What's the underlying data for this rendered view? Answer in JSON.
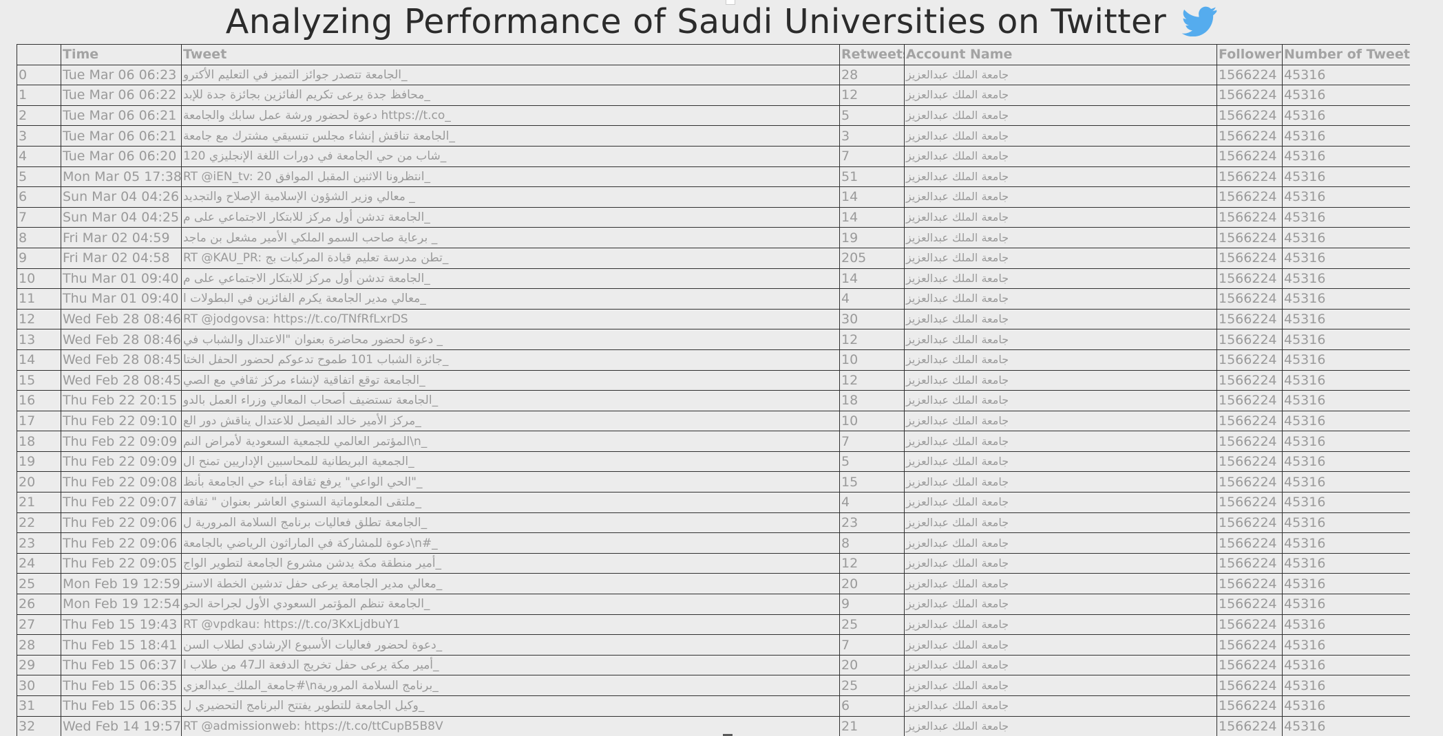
{
  "header": {
    "title": "Analyzing Performance of Saudi Universities on Twitter",
    "icon": "twitter-bird-icon",
    "icon_color": "#55acee"
  },
  "table": {
    "columns": [
      "",
      "Time",
      "Tweet",
      "Retweets",
      "Account Name",
      "Followers",
      "Number of Tweets"
    ],
    "rows": [
      {
        "idx": "0",
        "time": "Tue Mar 06 06:23",
        "tweet": "الجامعة تتصدر جوائز التميز في التعليم الأكترو_",
        "retweets": "28",
        "account": "جامعة الملك عبدالعزيز",
        "followers": "1566224",
        "tweets": "45316"
      },
      {
        "idx": "1",
        "time": "Tue Mar 06 06:22",
        "tweet": "محافظ جدة يرعى تكريم الفائزين بجائزة جدة للإبد_",
        "retweets": "12",
        "account": "جامعة الملك عبدالعزيز",
        "followers": "1566224",
        "tweets": "45316"
      },
      {
        "idx": "2",
        "time": "Tue Mar 06 06:21",
        "tweet": "دعوة لحضور ورشة عمل سابك والجامعة https://t.co_",
        "retweets": "5",
        "account": "جامعة الملك عبدالعزيز",
        "followers": "1566224",
        "tweets": "45316"
      },
      {
        "idx": "3",
        "time": "Tue Mar 06 06:21",
        "tweet": "الجامعة تناقش إنشاء مجلس تنسيقي مشترك مع جامعة_",
        "retweets": "3",
        "account": "جامعة الملك عبدالعزيز",
        "followers": "1566224",
        "tweets": "45316"
      },
      {
        "idx": "4",
        "time": "Tue Mar 06 06:20",
        "tweet": "شاب من حي الجامعة في دورات اللغة الإنجليزي 120_",
        "retweets": "7",
        "account": "جامعة الملك عبدالعزيز",
        "followers": "1566224",
        "tweets": "45316"
      },
      {
        "idx": "5",
        "time": "Mon Mar 05 17:38",
        "tweet": "RT @iEN_tv: 20 انتظرونا الاثنين المقبل الموافق_",
        "retweets": "51",
        "account": "جامعة الملك عبدالعزيز",
        "followers": "1566224",
        "tweets": "45316"
      },
      {
        "idx": "6",
        "time": "Sun Mar 04 04:26",
        "tweet": "معالي وزير الشؤون الإسلامية الإصلاح والتجديد _",
        "retweets": "14",
        "account": "جامعة الملك عبدالعزيز",
        "followers": "1566224",
        "tweets": "45316"
      },
      {
        "idx": "7",
        "time": "Sun Mar 04 04:25",
        "tweet": "الجامعة تدشن أول مركز للابتكار الاجتماعي على م_",
        "retweets": "14",
        "account": "جامعة الملك عبدالعزيز",
        "followers": "1566224",
        "tweets": "45316"
      },
      {
        "idx": "8",
        "time": "Fri Mar 02 04:59",
        "tweet": "برعاية صاحب السمو الملكي الأمير مشعل بن ماجد _",
        "retweets": "19",
        "account": "جامعة الملك عبدالعزيز",
        "followers": "1566224",
        "tweets": "45316"
      },
      {
        "idx": "9",
        "time": "Fri Mar 02 04:58",
        "tweet": "RT @KAU_PR: تطن مدرسة تعليم قيادة المركبات بج_",
        "retweets": "205",
        "account": "جامعة الملك عبدالعزيز",
        "followers": "1566224",
        "tweets": "45316"
      },
      {
        "idx": "10",
        "time": "Thu Mar 01 09:40",
        "tweet": "الجامعة تدشن أول مركز للابتكار الاجتماعي على م_",
        "retweets": "14",
        "account": "جامعة الملك عبدالعزيز",
        "followers": "1566224",
        "tweets": "45316"
      },
      {
        "idx": "11",
        "time": "Thu Mar 01 09:40",
        "tweet": "معالي مدير الجامعة يكرم الفائزين في البطولات ا_",
        "retweets": "4",
        "account": "جامعة الملك عبدالعزيز",
        "followers": "1566224",
        "tweets": "45316"
      },
      {
        "idx": "12",
        "time": "Wed Feb 28 08:46",
        "tweet": "RT @jodgovsa: https://t.co/TNfRfLxrDS",
        "retweets": "30",
        "account": "جامعة الملك عبدالعزيز",
        "followers": "1566224",
        "tweets": "45316"
      },
      {
        "idx": "13",
        "time": "Wed Feb 28 08:46",
        "tweet": "دعوة لحضور محاضرة بعنوان \"الاعتدال والشباب في _",
        "retweets": "12",
        "account": "جامعة الملك عبدالعزيز",
        "followers": "1566224",
        "tweets": "45316"
      },
      {
        "idx": "14",
        "time": "Wed Feb 28 08:45",
        "tweet": "جائزة الشباب 101 طموح تدعوكم لحضور الحفل الختا_",
        "retweets": "10",
        "account": "جامعة الملك عبدالعزيز",
        "followers": "1566224",
        "tweets": "45316"
      },
      {
        "idx": "15",
        "time": "Wed Feb 28 08:45",
        "tweet": "الجامعة توقع اتفاقية لإنشاء مركز ثقافي مع الصي_",
        "retweets": "12",
        "account": "جامعة الملك عبدالعزيز",
        "followers": "1566224",
        "tweets": "45316"
      },
      {
        "idx": "16",
        "time": "Thu Feb 22 20:15",
        "tweet": "الجامعة تستضيف أصحاب المعالي وزراء العمل بالدو_",
        "retweets": "18",
        "account": "جامعة الملك عبدالعزيز",
        "followers": "1566224",
        "tweets": "45316"
      },
      {
        "idx": "17",
        "time": "Thu Feb 22 09:10",
        "tweet": "مركز الأمير خالد الفيصل للاعتدال يناقش دور الع_",
        "retweets": "10",
        "account": "جامعة الملك عبدالعزيز",
        "followers": "1566224",
        "tweets": "45316"
      },
      {
        "idx": "18",
        "time": "Thu Feb 22 09:09",
        "tweet": "المؤتمر العالمي للجمعية السعودية لأمراض النم\\n_",
        "retweets": "7",
        "account": "جامعة الملك عبدالعزيز",
        "followers": "1566224",
        "tweets": "45316"
      },
      {
        "idx": "19",
        "time": "Thu Feb 22 09:09",
        "tweet": "الجمعية البريطانية للمحاسبين الإداريين تمنح ال_",
        "retweets": "5",
        "account": "جامعة الملك عبدالعزيز",
        "followers": "1566224",
        "tweets": "45316"
      },
      {
        "idx": "20",
        "time": "Thu Feb 22 09:08",
        "tweet": "الحي الواعي\" يرفع ثقافة أبناء حي الجامعة بأنظ\"_",
        "retweets": "15",
        "account": "جامعة الملك عبدالعزيز",
        "followers": "1566224",
        "tweets": "45316"
      },
      {
        "idx": "21",
        "time": "Thu Feb 22 09:07",
        "tweet": "ملتقى المعلوماتية السنوي العاشر بعنوان \" ثقافة_",
        "retweets": "4",
        "account": "جامعة الملك عبدالعزيز",
        "followers": "1566224",
        "tweets": "45316"
      },
      {
        "idx": "22",
        "time": "Thu Feb 22 09:06",
        "tweet": "الجامعة تطلق فعاليات برنامج السلامة المرورية ل_",
        "retweets": "23",
        "account": "جامعة الملك عبدالعزيز",
        "followers": "1566224",
        "tweets": "45316"
      },
      {
        "idx": "23",
        "time": "Thu Feb 22 09:06",
        "tweet": "دعوة للمشاركة في الماراثون الرياضي بالجامعة\\n#_",
        "retweets": "8",
        "account": "جامعة الملك عبدالعزيز",
        "followers": "1566224",
        "tweets": "45316"
      },
      {
        "idx": "24",
        "time": "Thu Feb 22 09:05",
        "tweet": "أمير منطقة مكة يدشن مشروع الجامعة لتطوير الواج_",
        "retweets": "12",
        "account": "جامعة الملك عبدالعزيز",
        "followers": "1566224",
        "tweets": "45316"
      },
      {
        "idx": "25",
        "time": "Mon Feb 19 12:59",
        "tweet": "معالي مدير الجامعة يرعى حفل تدشين الخطة الاستر_",
        "retweets": "20",
        "account": "جامعة الملك عبدالعزيز",
        "followers": "1566224",
        "tweets": "45316"
      },
      {
        "idx": "26",
        "time": "Mon Feb 19 12:54",
        "tweet": "الجامعة تنظم المؤتمر السعودي الأول لجراحة الحو_",
        "retweets": "9",
        "account": "جامعة الملك عبدالعزيز",
        "followers": "1566224",
        "tweets": "45316"
      },
      {
        "idx": "27",
        "time": "Thu Feb 15 19:43",
        "tweet": "RT @vpdkau: https://t.co/3KxLjdbuY1",
        "retweets": "25",
        "account": "جامعة الملك عبدالعزيز",
        "followers": "1566224",
        "tweets": "45316"
      },
      {
        "idx": "28",
        "time": "Thu Feb 15 18:41",
        "tweet": "دعوة لحضور فعاليات الأسبوع الإرشادي لطلاب السن_",
        "retweets": "7",
        "account": "جامعة الملك عبدالعزيز",
        "followers": "1566224",
        "tweets": "45316"
      },
      {
        "idx": "29",
        "time": "Thu Feb 15 06:37",
        "tweet": "أمير مكة يرعى حفل تخريج الدفعة الـ47 من طلاب ا_",
        "retweets": "20",
        "account": "جامعة الملك عبدالعزيز",
        "followers": "1566224",
        "tweets": "45316"
      },
      {
        "idx": "30",
        "time": "Thu Feb 15 06:35",
        "tweet": "جامعة_الملك_عبدالعزي#\\nبرنامج السلامة المرورية_",
        "retweets": "25",
        "account": "جامعة الملك عبدالعزيز",
        "followers": "1566224",
        "tweets": "45316"
      },
      {
        "idx": "31",
        "time": "Thu Feb 15 06:35",
        "tweet": "وكيل الجامعة للتطوير يفتتح البرنامج التحضيري ل_",
        "retweets": "6",
        "account": "جامعة الملك عبدالعزيز",
        "followers": "1566224",
        "tweets": "45316"
      },
      {
        "idx": "32",
        "time": "Wed Feb 14 19:57",
        "tweet": "RT @admissionweb: https://t.co/ttCupB5B8V",
        "retweets": "21",
        "account": "جامعة الملك عبدالعزيز",
        "followers": "1566224",
        "tweets": "45316"
      }
    ]
  }
}
